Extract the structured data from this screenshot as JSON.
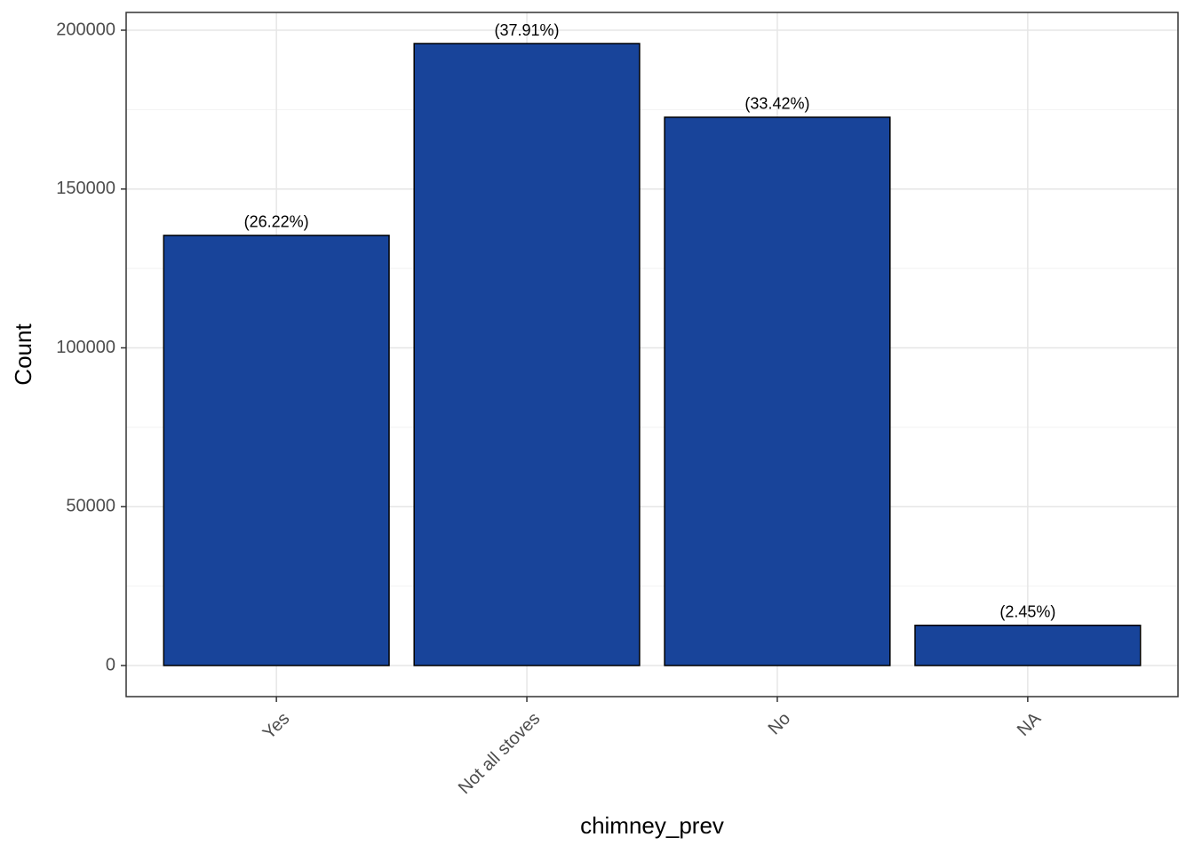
{
  "chart_data": {
    "type": "bar",
    "x_label": "chimney_prev",
    "y_label": "Count",
    "categories": [
      "Yes",
      "Not all stoves",
      "No",
      "NA"
    ],
    "values": [
      135400,
      195800,
      172600,
      12650
    ],
    "annotations": [
      "(26.22%)",
      "(37.91%)",
      "(33.42%)",
      "(2.45%)"
    ],
    "color": "#18449a",
    "ylim": [
      -9790,
      205590
    ],
    "yticks": [
      0,
      50000,
      100000,
      150000,
      200000
    ],
    "minor_yticks": [
      25000,
      75000,
      125000,
      175000
    ],
    "grid": true
  }
}
